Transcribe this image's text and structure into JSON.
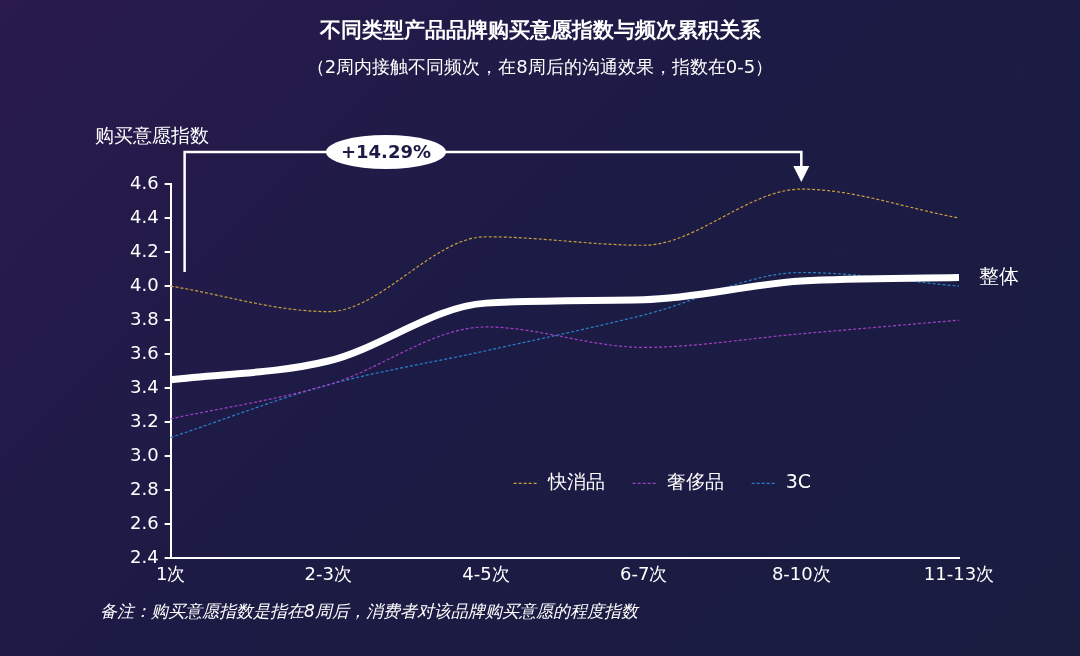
{
  "chart_data": {
    "type": "line",
    "title": "不同类型产品品牌购买意愿指数与频次累积关系",
    "subtitle": "（2周内接触不同频次，在8周后的沟通效果，指数在0-5）",
    "ylabel": "购买意愿指数",
    "categories": [
      "1次",
      "2-3次",
      "4-5次",
      "6-7次",
      "8-10次",
      "11-13次"
    ],
    "series": [
      {
        "name": "整体",
        "color": "#ffffff",
        "line_style": "solid",
        "values": [
          3.45,
          3.56,
          3.9,
          3.92,
          4.03,
          4.05
        ]
      },
      {
        "name": "快消品",
        "color": "#c8a040",
        "line_style": "dashed",
        "values": [
          4.0,
          3.85,
          4.29,
          4.24,
          4.57,
          4.4
        ]
      },
      {
        "name": "奢侈品",
        "color": "#a040c0",
        "line_style": "dashed",
        "values": [
          3.22,
          3.42,
          3.76,
          3.64,
          3.72,
          3.8
        ]
      },
      {
        "name": "3C",
        "color": "#2a80c8",
        "line_style": "dashed",
        "values": [
          3.11,
          3.42,
          3.62,
          3.83,
          4.08,
          4.0
        ]
      }
    ],
    "ylim": [
      2.4,
      4.6
    ],
    "yticks": [
      2.4,
      2.6,
      2.8,
      {
        "value": 3,
        "label": "3.0"
      },
      3.2,
      3.4,
      3.6,
      3.8,
      {
        "value": 4,
        "label": "4.0"
      },
      4.2,
      4.4,
      4.6
    ],
    "grid": false,
    "legend": "bottom right",
    "marker": "none",
    "annotations": [
      "+14.29%",
      "备注：购买意愿指数是指在8周后，消费者对该品牌购买意愿的程度指数"
    ]
  }
}
